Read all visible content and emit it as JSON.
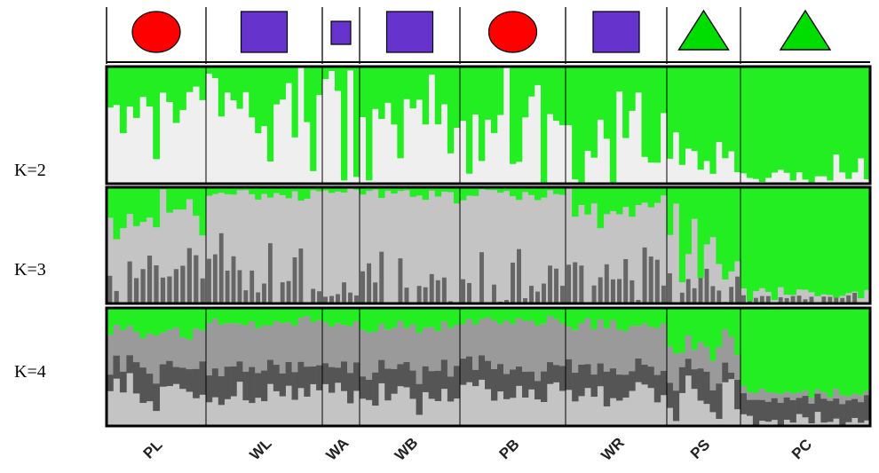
{
  "chart_data": {
    "type": "bar",
    "stacked": true,
    "normalized": true,
    "ylim": [
      0,
      1
    ],
    "populations": [
      {
        "label": "PL",
        "symbol": "circle",
        "symbol_color": "#ff0000",
        "n": 15
      },
      {
        "label": "WL",
        "symbol": "square",
        "symbol_color": "#6633cc",
        "n": 19
      },
      {
        "label": "WA",
        "symbol": "square-small",
        "symbol_color": "#6633cc",
        "n": 6
      },
      {
        "label": "WB",
        "symbol": "square",
        "symbol_color": "#6633cc",
        "n": 16
      },
      {
        "label": "PB",
        "symbol": "circle",
        "symbol_color": "#ff0000",
        "n": 17
      },
      {
        "label": "WR",
        "symbol": "square",
        "symbol_color": "#6633cc",
        "n": 16
      },
      {
        "label": "PS",
        "symbol": "triangle",
        "symbol_color": "#00dd00",
        "n": 12
      },
      {
        "label": "PC",
        "symbol": "triangle",
        "symbol_color": "#00dd00",
        "n": 21
      }
    ],
    "panels": [
      {
        "label": "K=2",
        "cluster_colors": [
          "#22ee22",
          "#efefef"
        ],
        "green_mean": [
          0.32,
          0.3,
          0.12,
          0.34,
          0.3,
          0.42,
          0.8,
          0.94
        ],
        "green_sd": [
          0.28,
          0.3,
          0.14,
          0.3,
          0.28,
          0.3,
          0.18,
          0.05
        ]
      },
      {
        "label": "K=3",
        "cluster_colors": [
          "#22ee22",
          "#666666",
          "#c4c4c4"
        ],
        "green_mean": [
          0.3,
          0.05,
          0.04,
          0.06,
          0.05,
          0.18,
          0.5,
          0.92
        ],
        "green_sd": [
          0.25,
          0.05,
          0.03,
          0.06,
          0.05,
          0.2,
          0.35,
          0.06
        ],
        "dark_mean": [
          0.2,
          0.25,
          0.12,
          0.22,
          0.2,
          0.25,
          0.2,
          0.05
        ],
        "dark_sd": [
          0.2,
          0.3,
          0.1,
          0.25,
          0.25,
          0.25,
          0.2,
          0.05
        ]
      },
      {
        "label": "K=4",
        "cluster_colors": [
          "#22ee22",
          "#9a9a9a",
          "#555555",
          "#c4c4c4"
        ],
        "green_mean": [
          0.22,
          0.13,
          0.15,
          0.18,
          0.12,
          0.17,
          0.35,
          0.72
        ],
        "green_sd": [
          0.08,
          0.05,
          0.04,
          0.06,
          0.05,
          0.06,
          0.12,
          0.04
        ],
        "mid_mean": [
          0.3,
          0.38,
          0.35,
          0.35,
          0.38,
          0.35,
          0.22,
          0.05
        ],
        "mid_sd": [
          0.08,
          0.06,
          0.06,
          0.08,
          0.07,
          0.07,
          0.1,
          0.03
        ],
        "dark_mean": [
          0.2,
          0.22,
          0.2,
          0.22,
          0.2,
          0.22,
          0.18,
          0.18
        ],
        "dark_sd": [
          0.1,
          0.06,
          0.06,
          0.06,
          0.06,
          0.06,
          0.1,
          0.05
        ]
      }
    ]
  }
}
